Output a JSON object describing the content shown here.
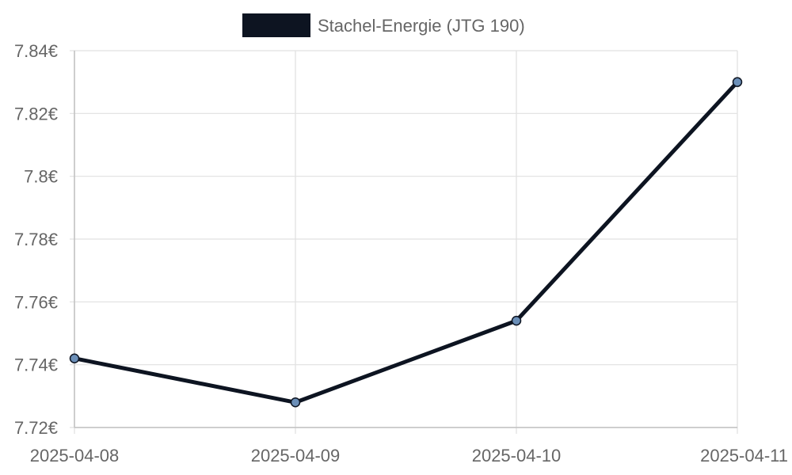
{
  "chart_data": {
    "type": "line",
    "title": "",
    "xlabel": "",
    "ylabel": "",
    "x": [
      "2025-04-08",
      "2025-04-09",
      "2025-04-10",
      "2025-04-11"
    ],
    "series": [
      {
        "name": "Stachel-Energie (JTG 190)",
        "values": [
          7.742,
          7.728,
          7.754,
          7.83
        ],
        "color": "#0d1421",
        "point_fill": "#6b8fb8"
      }
    ],
    "ylim": [
      7.72,
      7.84
    ],
    "yticks": [
      {
        "value": 7.84,
        "label": "7.84€"
      },
      {
        "value": 7.82,
        "label": "7.82€"
      },
      {
        "value": 7.8,
        "label": "7.8€"
      },
      {
        "value": 7.78,
        "label": "7.78€"
      },
      {
        "value": 7.76,
        "label": "7.76€"
      },
      {
        "value": 7.74,
        "label": "7.74€"
      },
      {
        "value": 7.72,
        "label": "7.72€"
      }
    ],
    "grid": true,
    "legend_position": "top-center",
    "grid_color": "#e0e0e0",
    "axis_color": "#c0c0c0"
  }
}
